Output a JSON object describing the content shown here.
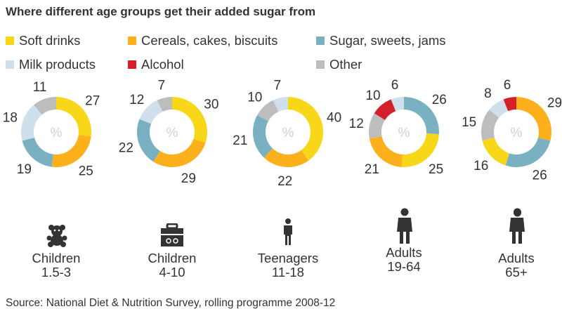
{
  "chart_data": {
    "type": "pie",
    "title": "Where different age groups get their added sugar from",
    "legend": [
      {
        "name": "Soft drinks",
        "color": "#f8d718"
      },
      {
        "name": "Cereals, cakes, biscuits",
        "color": "#fbb01c"
      },
      {
        "name": "Sugar, sweets, jams",
        "color": "#79b0c2"
      },
      {
        "name": "Milk products",
        "color": "#cfe0ec"
      },
      {
        "name": "Alcohol",
        "color": "#d3202a"
      },
      {
        "name": "Other",
        "color": "#bdbdbd"
      }
    ],
    "center_label": "%",
    "groups": [
      {
        "label1": "Children",
        "label2": "1.5-3",
        "icon": "teddy-bear-icon",
        "slices": [
          {
            "series": "Soft drinks",
            "value": 27
          },
          {
            "series": "Cereals, cakes, biscuits",
            "value": 25
          },
          {
            "series": "Sugar, sweets, jams",
            "value": 19
          },
          {
            "series": "Milk products",
            "value": 18
          },
          {
            "series": "Other",
            "value": 11
          }
        ]
      },
      {
        "label1": "Children",
        "label2": "4-10",
        "icon": "lunchbox-icon",
        "slices": [
          {
            "series": "Soft drinks",
            "value": 30
          },
          {
            "series": "Cereals, cakes, biscuits",
            "value": 29
          },
          {
            "series": "Sugar, sweets, jams",
            "value": 22
          },
          {
            "series": "Milk products",
            "value": 12
          },
          {
            "series": "Other",
            "value": 7
          }
        ]
      },
      {
        "label1": "Teenagers",
        "label2": "11-18",
        "icon": "teenager-icon",
        "slices": [
          {
            "series": "Soft drinks",
            "value": 40
          },
          {
            "series": "Cereals, cakes, biscuits",
            "value": 22
          },
          {
            "series": "Sugar, sweets, jams",
            "value": 21
          },
          {
            "series": "Other",
            "value": 10
          },
          {
            "series": "Milk products",
            "value": 7
          }
        ]
      },
      {
        "label1": "Adults",
        "label2": "19-64",
        "icon": "adult-icon",
        "slices": [
          {
            "series": "Sugar, sweets, jams",
            "value": 26
          },
          {
            "series": "Soft drinks",
            "value": 25
          },
          {
            "series": "Cereals, cakes, biscuits",
            "value": 21
          },
          {
            "series": "Other",
            "value": 12
          },
          {
            "series": "Alcohol",
            "value": 10
          },
          {
            "series": "Milk products",
            "value": 6
          }
        ]
      },
      {
        "label1": "Adults",
        "label2": "65+",
        "icon": "older-adult-icon",
        "slices": [
          {
            "series": "Cereals, cakes, biscuits",
            "value": 29
          },
          {
            "series": "Sugar, sweets, jams",
            "value": 26
          },
          {
            "series": "Soft drinks",
            "value": 16
          },
          {
            "series": "Other",
            "value": 15
          },
          {
            "series": "Milk products",
            "value": 8
          },
          {
            "series": "Alcohol",
            "value": 6
          }
        ]
      }
    ],
    "source": "Source: National Diet & Nutrition Survey, rolling programme 2008-12"
  }
}
